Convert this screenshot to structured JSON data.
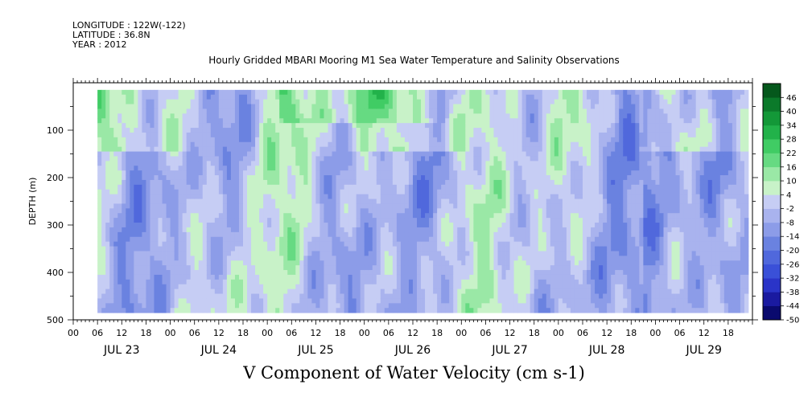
{
  "header": {
    "longitude": "LONGITUDE : 122W(-122)",
    "latitude": "LATITUDE : 36.8N",
    "year": "YEAR : 2012",
    "title": "Hourly Gridded MBARI Mooring M1 Sea Water Temperature and Salinity Observations"
  },
  "chart_data": {
    "type": "heatmap",
    "title": "Hourly Gridded MBARI Mooring M1 Sea Water Temperature and Salinity Observations",
    "variable_title": "V Component of Water Velocity (cm s-1)",
    "ylabel": "DEPTH (m)",
    "y_reversed": true,
    "ylim": [
      0,
      500
    ],
    "y_ticks": [
      100,
      200,
      300,
      400,
      500
    ],
    "y_tick_labels": [
      "100",
      "200",
      "300",
      "400",
      "500"
    ],
    "data_depth_range": [
      15,
      485
    ],
    "x_hour_ticks": [
      "00",
      "06",
      "12",
      "18",
      "00",
      "06",
      "12",
      "18",
      "00",
      "06",
      "12",
      "18",
      "00",
      "06",
      "12",
      "18",
      "00",
      "06",
      "12",
      "18",
      "00",
      "06",
      "12",
      "18",
      "00",
      "06",
      "12",
      "18"
    ],
    "x_day_labels": [
      "JUL 23",
      "JUL 24",
      "JUL 25",
      "JUL 26",
      "JUL 27",
      "JUL 28",
      "JUL 29"
    ],
    "xlim_hours": [
      0,
      168
    ],
    "data_start_hour": 6,
    "colorbar": {
      "levels": [
        -50,
        -44,
        -38,
        -32,
        -26,
        -20,
        -14,
        -8,
        -2,
        4,
        10,
        16,
        22,
        28,
        34,
        40,
        46
      ],
      "labels": [
        "-50",
        "-44",
        "-38",
        "-32",
        "-26",
        "-20",
        "-14",
        "-8",
        "-2",
        "4",
        "10",
        "16",
        "22",
        "28",
        "34",
        "40",
        "46"
      ],
      "colors": [
        "#0a0a6e",
        "#1a1aa0",
        "#2a34c8",
        "#3a50d8",
        "#5068dc",
        "#6a82e0",
        "#8c9ce8",
        "#a9b3ee",
        "#c6cdf4",
        "#c8f2c8",
        "#9ae8a6",
        "#66da82",
        "#40cc64",
        "#22b24a",
        "#139838",
        "#0b7a2a",
        "#05581c"
      ]
    }
  }
}
